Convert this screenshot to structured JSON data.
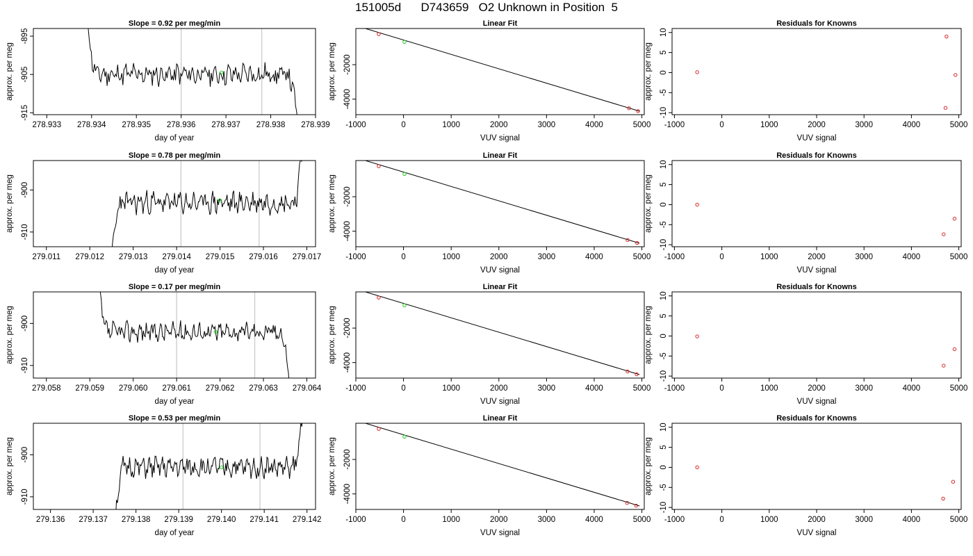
{
  "title": "151005d      D743659   O2 Unknown in Position  5",
  "chart_data": [
    {
      "type": "line",
      "row": 1,
      "col": 1,
      "title": "Slope =  0.92  per meg/min",
      "xlabel": "day of year",
      "ylabel": "approx. per meg",
      "xlim": [
        278.9327,
        278.939
      ],
      "ylim": [
        -915.5,
        -893.0
      ],
      "xticks": [
        278.933,
        278.934,
        278.935,
        278.936,
        278.937,
        278.938,
        278.939
      ],
      "xtick_labels": [
        "278.933",
        "278.934",
        "278.935",
        "278.936",
        "278.937",
        "278.938",
        "278.939"
      ],
      "yticks": [
        -915,
        -905,
        -895
      ],
      "ytick_labels": [
        "-915",
        "-905",
        "-895"
      ],
      "vlines": [
        278.936,
        278.9378
      ],
      "x_start": 278.9339,
      "x_end": 278.9386,
      "level": -905,
      "noise": 2.2,
      "series_start": -890,
      "series_end": -918,
      "seed": 11,
      "highlight": {
        "x": 278.9369,
        "y": -904.5
      }
    },
    {
      "type": "scatter",
      "row": 1,
      "col": 2,
      "title": "Linear Fit",
      "xlabel": "VUV signal",
      "ylabel": "approx. per meg",
      "xlim": [
        -1000,
        5050
      ],
      "ylim": [
        -4900,
        100
      ],
      "xticks": [
        -1000,
        0,
        1000,
        2000,
        3000,
        4000,
        5000
      ],
      "xtick_labels": [
        "-1000",
        "0",
        "1000",
        "2000",
        "3000",
        "4000",
        "5000"
      ],
      "yticks": [
        -4000,
        -2000
      ],
      "ytick_labels": [
        "-4000",
        "-2000"
      ],
      "fit_line": [
        [
          -800,
          100
        ],
        [
          4950,
          -4700
        ]
      ],
      "points": [
        [
          -520,
          -230
        ],
        [
          4730,
          -4530
        ],
        [
          4920,
          -4690
        ]
      ],
      "unknown": {
        "x": 20,
        "y": -680
      }
    },
    {
      "type": "scatter",
      "row": 1,
      "col": 3,
      "title": "Residuals for Knowns",
      "xlabel": "VUV signal",
      "ylabel": "approx. per meg",
      "xlim": [
        -1050,
        5050
      ],
      "ylim": [
        -10.5,
        11
      ],
      "xticks": [
        -1000,
        0,
        1000,
        2000,
        3000,
        4000,
        5000
      ],
      "xtick_labels": [
        "-1000",
        "0",
        "1000",
        "2000",
        "3000",
        "4000",
        "5000"
      ],
      "yticks": [
        -10,
        -5,
        0,
        5,
        10
      ],
      "ytick_labels": [
        "-10",
        "-5",
        "0",
        "5",
        "10"
      ],
      "points": [
        [
          -520,
          0.1
        ],
        [
          4740,
          9.0
        ],
        [
          4720,
          -8.8
        ],
        [
          4930,
          -0.6
        ]
      ]
    },
    {
      "type": "line",
      "row": 2,
      "col": 1,
      "title": "Slope =  0.78  per meg/min",
      "xlabel": "day of year",
      "ylabel": "approx. per meg",
      "xlim": [
        279.0107,
        279.0172
      ],
      "ylim": [
        -913.5,
        -893.0
      ],
      "xticks": [
        279.011,
        279.012,
        279.013,
        279.014,
        279.015,
        279.016,
        279.017
      ],
      "xtick_labels": [
        "279.011",
        "279.012",
        "279.013",
        "279.014",
        "279.015",
        "279.016",
        "279.017"
      ],
      "yticks": [
        -910,
        -900
      ],
      "ytick_labels": [
        "-910",
        "-900"
      ],
      "vlines": [
        279.0141,
        279.0159
      ],
      "x_start": 279.0125,
      "x_end": 279.0169,
      "level": -903,
      "noise": 2.0,
      "series_start": -918,
      "series_end": -890,
      "seed": 23,
      "highlight": {
        "x": 279.015,
        "y": -902.5
      }
    },
    {
      "type": "scatter",
      "row": 2,
      "col": 2,
      "title": "Linear Fit",
      "xlabel": "VUV signal",
      "ylabel": "approx. per meg",
      "xlim": [
        -1000,
        5050
      ],
      "ylim": [
        -4900,
        100
      ],
      "xticks": [
        -1000,
        0,
        1000,
        2000,
        3000,
        4000,
        5000
      ],
      "xtick_labels": [
        "-1000",
        "0",
        "1000",
        "2000",
        "3000",
        "4000",
        "5000"
      ],
      "yticks": [
        -4000,
        -2000
      ],
      "ytick_labels": [
        "-4000",
        "-2000"
      ],
      "fit_line": [
        [
          -800,
          100
        ],
        [
          4950,
          -4700
        ]
      ],
      "points": [
        [
          -520,
          -230
        ],
        [
          4700,
          -4510
        ],
        [
          4900,
          -4680
        ]
      ],
      "unknown": {
        "x": 20,
        "y": -680
      }
    },
    {
      "type": "scatter",
      "row": 2,
      "col": 3,
      "title": "Residuals for Knowns",
      "xlabel": "VUV signal",
      "ylabel": "approx. per meg",
      "xlim": [
        -1050,
        5050
      ],
      "ylim": [
        -10.5,
        11
      ],
      "xticks": [
        -1000,
        0,
        1000,
        2000,
        3000,
        4000,
        5000
      ],
      "xtick_labels": [
        "-1000",
        "0",
        "1000",
        "2000",
        "3000",
        "4000",
        "5000"
      ],
      "yticks": [
        -10,
        -5,
        0,
        5,
        10
      ],
      "ytick_labels": [
        "-10",
        "-5",
        "0",
        "5",
        "10"
      ],
      "points": [
        [
          -520,
          0.0
        ],
        [
          4680,
          -7.4
        ],
        [
          4910,
          -3.5
        ]
      ]
    },
    {
      "type": "line",
      "row": 3,
      "col": 1,
      "title": "Slope =  0.17  per meg/min",
      "xlabel": "day of year",
      "ylabel": "approx. per meg",
      "xlim": [
        279.0577,
        279.0642
      ],
      "ylim": [
        -913.0,
        -892.5
      ],
      "xticks": [
        279.058,
        279.059,
        279.06,
        279.061,
        279.062,
        279.063,
        279.064
      ],
      "xtick_labels": [
        "279.058",
        "279.059",
        "279.060",
        "279.061",
        "279.062",
        "279.063",
        "279.064"
      ],
      "yticks": [
        -910,
        -900
      ],
      "ytick_labels": [
        "-910",
        "-900"
      ],
      "vlines": [
        279.061,
        279.0628
      ],
      "x_start": 279.0592,
      "x_end": 279.0636,
      "level": -902,
      "noise": 1.8,
      "series_start": -890,
      "series_end": -915,
      "seed": 37,
      "highlight": {
        "x": 279.0619,
        "y": -902.0
      }
    },
    {
      "type": "scatter",
      "row": 3,
      "col": 2,
      "title": "Linear Fit",
      "xlabel": "VUV signal",
      "ylabel": "approx. per meg",
      "xlim": [
        -1000,
        5050
      ],
      "ylim": [
        -4900,
        100
      ],
      "xticks": [
        -1000,
        0,
        1000,
        2000,
        3000,
        4000,
        5000
      ],
      "xtick_labels": [
        "-1000",
        "0",
        "1000",
        "2000",
        "3000",
        "4000",
        "5000"
      ],
      "yticks": [
        -4000,
        -2000
      ],
      "ytick_labels": [
        "-4000",
        "-2000"
      ],
      "fit_line": [
        [
          -800,
          100
        ],
        [
          4950,
          -4700
        ]
      ],
      "points": [
        [
          -520,
          -230
        ],
        [
          4700,
          -4520
        ],
        [
          4890,
          -4680
        ]
      ],
      "unknown": {
        "x": 20,
        "y": -680
      }
    },
    {
      "type": "scatter",
      "row": 3,
      "col": 3,
      "title": "Residuals for Knowns",
      "xlabel": "VUV signal",
      "ylabel": "approx. per meg",
      "xlim": [
        -1050,
        5050
      ],
      "ylim": [
        -10.5,
        11
      ],
      "xticks": [
        -1000,
        0,
        1000,
        2000,
        3000,
        4000,
        5000
      ],
      "xtick_labels": [
        "-1000",
        "0",
        "1000",
        "2000",
        "3000",
        "4000",
        "5000"
      ],
      "yticks": [
        -10,
        -5,
        0,
        5,
        10
      ],
      "ytick_labels": [
        "-10",
        "-5",
        "0",
        "5",
        "10"
      ],
      "points": [
        [
          -520,
          -0.1
        ],
        [
          4680,
          -7.4
        ],
        [
          4910,
          -3.3
        ]
      ]
    },
    {
      "type": "line",
      "row": 4,
      "col": 1,
      "title": "Slope =  0.53  per meg/min",
      "xlabel": "day of year",
      "ylabel": "approx. per meg",
      "xlim": [
        279.1356,
        279.1422
      ],
      "ylim": [
        -913.0,
        -892.5
      ],
      "xticks": [
        279.136,
        279.137,
        279.138,
        279.139,
        279.14,
        279.141,
        279.142
      ],
      "xtick_labels": [
        "279.136",
        "279.137",
        "279.138",
        "279.139",
        "279.140",
        "279.141",
        "279.142"
      ],
      "yticks": [
        -910,
        -900
      ],
      "ytick_labels": [
        "-910",
        "-900"
      ],
      "vlines": [
        279.1391,
        279.1409
      ],
      "x_start": 279.1375,
      "x_end": 279.1419,
      "level": -903,
      "noise": 1.9,
      "series_start": -918,
      "series_end": -889,
      "seed": 51,
      "highlight": {
        "x": 279.14,
        "y": -903.0
      }
    },
    {
      "type": "scatter",
      "row": 4,
      "col": 2,
      "title": "Linear Fit",
      "xlabel": "VUV signal",
      "ylabel": "approx. per meg",
      "xlim": [
        -1000,
        5050
      ],
      "ylim": [
        -4900,
        100
      ],
      "xticks": [
        -1000,
        0,
        1000,
        2000,
        3000,
        4000,
        5000
      ],
      "xtick_labels": [
        "-1000",
        "0",
        "1000",
        "2000",
        "3000",
        "4000",
        "5000"
      ],
      "yticks": [
        -4000,
        -2000
      ],
      "ytick_labels": [
        "-4000",
        "-2000"
      ],
      "fit_line": [
        [
          -800,
          100
        ],
        [
          4950,
          -4700
        ]
      ],
      "points": [
        [
          -520,
          -230
        ],
        [
          4690,
          -4520
        ],
        [
          4880,
          -4680
        ]
      ],
      "unknown": {
        "x": 20,
        "y": -680
      }
    },
    {
      "type": "scatter",
      "row": 4,
      "col": 3,
      "title": "Residuals for Knowns",
      "xlabel": "VUV signal",
      "ylabel": "approx. per meg",
      "xlim": [
        -1050,
        5050
      ],
      "ylim": [
        -10.5,
        11
      ],
      "xticks": [
        -1000,
        0,
        1000,
        2000,
        3000,
        4000,
        5000
      ],
      "xtick_labels": [
        "-1000",
        "0",
        "1000",
        "2000",
        "3000",
        "4000",
        "5000"
      ],
      "yticks": [
        -10,
        -5,
        0,
        5,
        10
      ],
      "ytick_labels": [
        "-10",
        "-5",
        "0",
        "5",
        "10"
      ],
      "points": [
        [
          -520,
          0.0
        ],
        [
          4670,
          -7.8
        ],
        [
          4880,
          -3.6
        ]
      ]
    }
  ],
  "colors": {
    "line": "#000000",
    "vline": "#c8c8c8",
    "known_point": "#d62728",
    "unknown_point": "#22cc22",
    "fit_line": "#000000"
  }
}
